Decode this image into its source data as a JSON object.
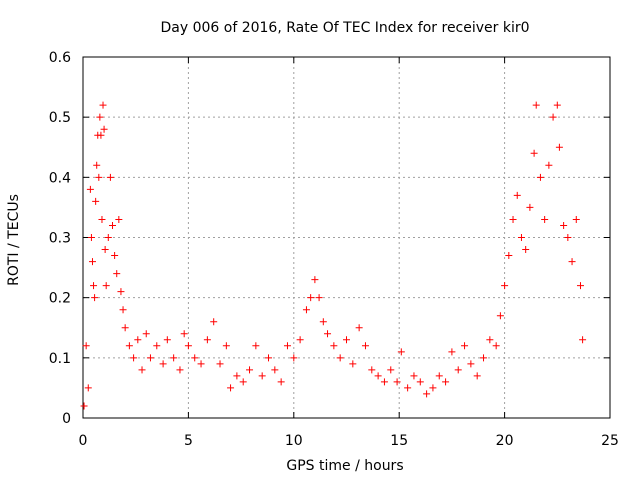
{
  "chart_data": {
    "type": "scatter",
    "title": "Day 006 of 2016, Rate Of TEC Index for receiver kir0",
    "xlabel": "GPS time / hours",
    "ylabel": "ROTI / TECUs",
    "xlim": [
      0,
      25
    ],
    "ylim": [
      0,
      0.6
    ],
    "xticks": [
      "0",
      "5",
      "10",
      "15",
      "20",
      "25"
    ],
    "yticks": [
      "0",
      "0.1",
      "0.2",
      "0.3",
      "0.4",
      "0.5",
      "0.6"
    ],
    "grid": true,
    "marker": "plus",
    "color": "#ff0000",
    "series": [
      {
        "points": [
          [
            0.05,
            0.02
          ],
          [
            0.15,
            0.12
          ],
          [
            0.25,
            0.05
          ],
          [
            0.35,
            0.38
          ],
          [
            0.4,
            0.3
          ],
          [
            0.45,
            0.26
          ],
          [
            0.5,
            0.22
          ],
          [
            0.55,
            0.2
          ],
          [
            0.6,
            0.36
          ],
          [
            0.65,
            0.42
          ],
          [
            0.7,
            0.47
          ],
          [
            0.75,
            0.4
          ],
          [
            0.8,
            0.5
          ],
          [
            0.85,
            0.47
          ],
          [
            0.9,
            0.33
          ],
          [
            0.95,
            0.52
          ],
          [
            1.0,
            0.48
          ],
          [
            1.05,
            0.28
          ],
          [
            1.1,
            0.22
          ],
          [
            1.2,
            0.3
          ],
          [
            1.3,
            0.4
          ],
          [
            1.4,
            0.32
          ],
          [
            1.5,
            0.27
          ],
          [
            1.6,
            0.24
          ],
          [
            1.7,
            0.33
          ],
          [
            1.8,
            0.21
          ],
          [
            1.9,
            0.18
          ],
          [
            2.0,
            0.15
          ],
          [
            2.2,
            0.12
          ],
          [
            2.4,
            0.1
          ],
          [
            2.6,
            0.13
          ],
          [
            2.8,
            0.08
          ],
          [
            3.0,
            0.14
          ],
          [
            3.2,
            0.1
          ],
          [
            3.5,
            0.12
          ],
          [
            3.8,
            0.09
          ],
          [
            4.0,
            0.13
          ],
          [
            4.3,
            0.1
          ],
          [
            4.6,
            0.08
          ],
          [
            4.8,
            0.14
          ],
          [
            5.0,
            0.12
          ],
          [
            5.3,
            0.1
          ],
          [
            5.6,
            0.09
          ],
          [
            5.9,
            0.13
          ],
          [
            6.2,
            0.16
          ],
          [
            6.5,
            0.09
          ],
          [
            6.8,
            0.12
          ],
          [
            7.0,
            0.05
          ],
          [
            7.3,
            0.07
          ],
          [
            7.6,
            0.06
          ],
          [
            7.9,
            0.08
          ],
          [
            8.2,
            0.12
          ],
          [
            8.5,
            0.07
          ],
          [
            8.8,
            0.1
          ],
          [
            9.1,
            0.08
          ],
          [
            9.4,
            0.06
          ],
          [
            9.7,
            0.12
          ],
          [
            10.0,
            0.1
          ],
          [
            10.3,
            0.13
          ],
          [
            10.6,
            0.18
          ],
          [
            10.8,
            0.2
          ],
          [
            11.0,
            0.23
          ],
          [
            11.2,
            0.2
          ],
          [
            11.4,
            0.16
          ],
          [
            11.6,
            0.14
          ],
          [
            11.9,
            0.12
          ],
          [
            12.2,
            0.1
          ],
          [
            12.5,
            0.13
          ],
          [
            12.8,
            0.09
          ],
          [
            13.1,
            0.15
          ],
          [
            13.4,
            0.12
          ],
          [
            13.7,
            0.08
          ],
          [
            14.0,
            0.07
          ],
          [
            14.3,
            0.06
          ],
          [
            14.6,
            0.08
          ],
          [
            14.9,
            0.06
          ],
          [
            15.1,
            0.11
          ],
          [
            15.4,
            0.05
          ],
          [
            15.7,
            0.07
          ],
          [
            16.0,
            0.06
          ],
          [
            16.3,
            0.04
          ],
          [
            16.6,
            0.05
          ],
          [
            16.9,
            0.07
          ],
          [
            17.2,
            0.06
          ],
          [
            17.5,
            0.11
          ],
          [
            17.8,
            0.08
          ],
          [
            18.1,
            0.12
          ],
          [
            18.4,
            0.09
          ],
          [
            18.7,
            0.07
          ],
          [
            19.0,
            0.1
          ],
          [
            19.3,
            0.13
          ],
          [
            19.6,
            0.12
          ],
          [
            19.8,
            0.17
          ],
          [
            20.0,
            0.22
          ],
          [
            20.2,
            0.27
          ],
          [
            20.4,
            0.33
          ],
          [
            20.6,
            0.37
          ],
          [
            20.8,
            0.3
          ],
          [
            21.0,
            0.28
          ],
          [
            21.2,
            0.35
          ],
          [
            21.4,
            0.44
          ],
          [
            21.5,
            0.52
          ],
          [
            21.7,
            0.4
          ],
          [
            21.9,
            0.33
          ],
          [
            22.1,
            0.42
          ],
          [
            22.3,
            0.5
          ],
          [
            22.5,
            0.52
          ],
          [
            22.6,
            0.45
          ],
          [
            22.8,
            0.32
          ],
          [
            23.0,
            0.3
          ],
          [
            23.2,
            0.26
          ],
          [
            23.4,
            0.33
          ],
          [
            23.6,
            0.22
          ],
          [
            23.7,
            0.13
          ]
        ]
      }
    ]
  }
}
